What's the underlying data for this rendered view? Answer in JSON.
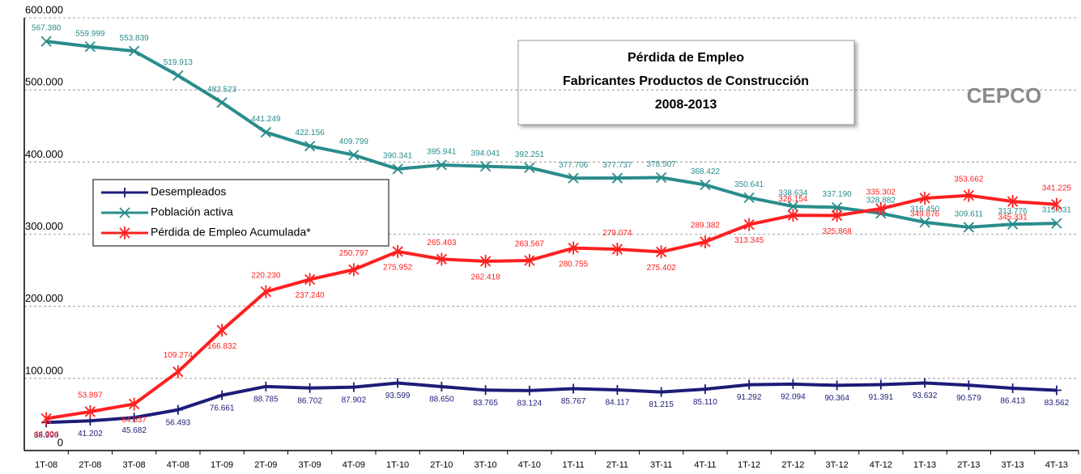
{
  "chart_data": {
    "type": "line",
    "title_lines": [
      "Pérdida de Empleo",
      "Fabricantes Productos de Construcción",
      "2008-2013"
    ],
    "logo": "CEPCO",
    "categories": [
      "1T-08",
      "2T-08",
      "3T-08",
      "4T-08",
      "1T-09",
      "2T-09",
      "3T-09",
      "4T-09",
      "1T-10",
      "2T-10",
      "3T-10",
      "4T-10",
      "1T-11",
      "2T-11",
      "3T-11",
      "4T-11",
      "1T-12",
      "2T-12",
      "3T-12",
      "4T-12",
      "1T-13",
      "2T-13",
      "3T-13",
      "4T-13"
    ],
    "ylim": [
      0,
      600000
    ],
    "yticks": [
      0,
      {
        "value": 100000,
        "label": "100.000"
      },
      {
        "value": 200000,
        "label": "200.000"
      },
      {
        "value": 300000,
        "label": "300.000"
      },
      {
        "value": 400000,
        "label": "400.000"
      },
      {
        "value": 500000,
        "label": "500.000"
      },
      {
        "value": 600000,
        "label": "600.000"
      }
    ],
    "grid": true,
    "legend": "top-left",
    "series": [
      {
        "name": "Desempleados",
        "color": "#1c1c78",
        "marker": "plus",
        "values": [
          38990,
          41202,
          45682,
          56493,
          76661,
          88785,
          86702,
          87902,
          93599,
          88650,
          83765,
          83124,
          85767,
          84117,
          81215,
          85110,
          91292,
          92094,
          90364,
          91391,
          93632,
          90579,
          86413,
          83562
        ],
        "value_labels": [
          "38.990",
          "41.202",
          "45.682",
          "56.493",
          "76.661",
          "88.785",
          "86.702",
          "87.902",
          "93.599",
          "88.650",
          "83.765",
          "83.124",
          "85.767",
          "84.117",
          "81.215",
          "85.110",
          "91.292",
          "92.094",
          "90.364",
          "91.391",
          "93.632",
          "90.579",
          "86.413",
          "83.562"
        ]
      },
      {
        "name": "Población activa",
        "color": "#2a8c8c",
        "marker": "x",
        "values": [
          567380,
          559999,
          553839,
          519913,
          482523,
          441249,
          422156,
          409799,
          390341,
          395941,
          394041,
          392251,
          377706,
          377737,
          378507,
          368422,
          350641,
          338634,
          337190,
          328882,
          316450,
          309611,
          313776,
          315031
        ],
        "value_labels": [
          "567.380",
          "559.999",
          "553.839",
          "519.913",
          "482.523",
          "441.249",
          "422.156",
          "409.799",
          "390.341",
          "395.941",
          "394.041",
          "392.251",
          "377.706",
          "377.737",
          "378.507",
          "368.422",
          "350.641",
          "338.634",
          "337.190",
          "328.882",
          "316.450",
          "309.611",
          "313.776",
          "315.031"
        ]
      },
      {
        "name": "Pérdida de Empleo Acumulada*",
        "color": "#ff2020",
        "marker": "star",
        "values": [
          44304,
          53897,
          64537,
          109274,
          166832,
          220230,
          237240,
          250797,
          275952,
          265403,
          262418,
          263567,
          280755,
          279074,
          275402,
          289382,
          313345,
          326154,
          325868,
          335302,
          349876,
          353662,
          345331,
          341225
        ],
        "value_labels": [
          "44.304",
          "53.897",
          "64.537",
          "109.274",
          "166.832",
          "220.230",
          "237.240",
          "250.797",
          "275.952",
          "265.403",
          "262.418",
          "263.567",
          "280.755",
          "279.074",
          "275.402",
          "289.382",
          "313.345",
          "326.154",
          "325.868",
          "335.302",
          "349.876",
          "353.662",
          "345.331",
          "341.225"
        ]
      }
    ]
  }
}
